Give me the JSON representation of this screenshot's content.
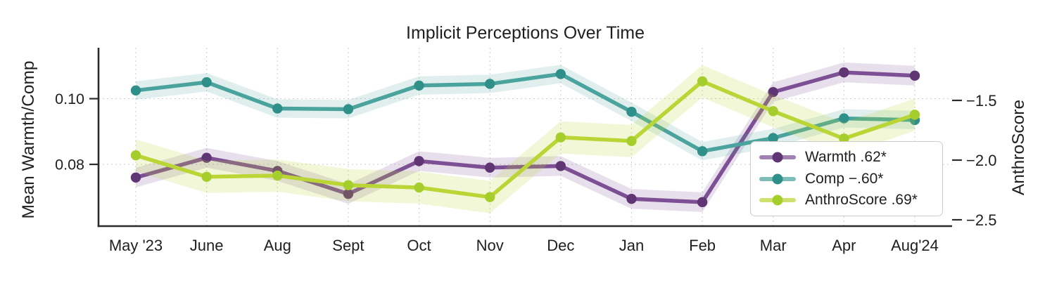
{
  "chart_data": {
    "type": "line",
    "title": "Implicit Perceptions Over Time",
    "categories": [
      "May '23",
      "June",
      "Aug",
      "Sept",
      "Oct",
      "Nov",
      "Dec",
      "Jan",
      "Feb",
      "Mar",
      "Apr",
      "Aug'24"
    ],
    "left_axis": {
      "label": "Mean Warmth/Comp",
      "tick_labels": [
        "0.10",
        "0.08"
      ],
      "tick_values": [
        0.1,
        0.08
      ],
      "range": [
        0.0612,
        0.1155
      ]
    },
    "right_axis": {
      "label": "AnthroScore",
      "tick_labels": [
        "−1.5",
        "−2.0",
        "−2.5"
      ],
      "tick_values": [
        -1.5,
        -2.0,
        -2.5
      ],
      "range": [
        -2.553,
        -1.059
      ]
    },
    "grid": true,
    "legend_position": "lower right",
    "series": [
      {
        "name": "Warmth",
        "legend_label": "Warmth .62*",
        "axis": "left",
        "color": "#7D4F94",
        "marker_color": "#5F3573",
        "band": 0.003,
        "band_alpha": 0.18,
        "values": [
          0.076,
          0.082,
          0.078,
          0.071,
          0.081,
          0.079,
          0.0795,
          0.0695,
          0.0685,
          0.102,
          0.108,
          0.107
        ]
      },
      {
        "name": "Comp",
        "legend_label": "Comp −.60*",
        "axis": "left",
        "color": "#4AA39D",
        "marker_color": "#2F8F89",
        "band": 0.0028,
        "band_alpha": 0.17,
        "values": [
          0.1025,
          0.105,
          0.097,
          0.0968,
          0.104,
          0.1045,
          0.1075,
          0.096,
          0.084,
          0.088,
          0.094,
          0.0935
        ]
      },
      {
        "name": "AnthroScore",
        "legend_label": "AnthroScore .69*",
        "axis": "right",
        "color": "#B9D636",
        "marker_color": "#A5CE2D",
        "band": 0.135,
        "band_alpha": 0.2,
        "values": [
          -1.96,
          -2.14,
          -2.13,
          -2.21,
          -2.23,
          -2.31,
          -1.81,
          -1.84,
          -1.34,
          -1.59,
          -1.82,
          -1.62
        ]
      }
    ]
  }
}
